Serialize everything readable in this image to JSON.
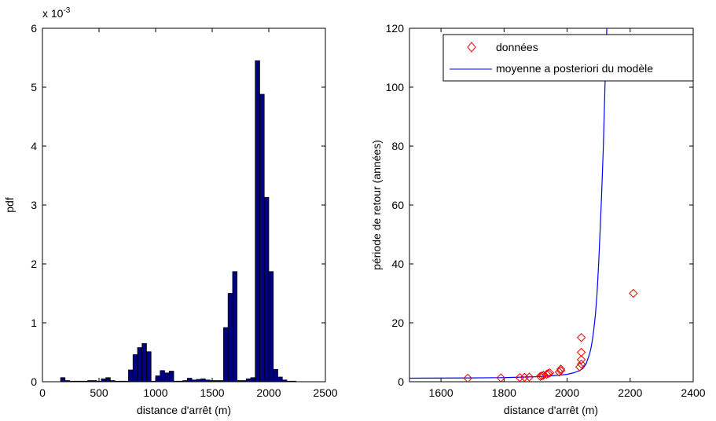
{
  "chart_data": [
    {
      "type": "bar",
      "xlabel": "distance d'arrêt (m)",
      "ylabel": "pdf",
      "exponent_label": "x 10",
      "exponent_power": "-3",
      "xlim": [
        0,
        2500
      ],
      "ylim": [
        0,
        6
      ],
      "xticks": [
        "0",
        "500",
        "1000",
        "1500",
        "2000",
        "2500"
      ],
      "yticks": [
        "0",
        "1",
        "2",
        "3",
        "4",
        "5",
        "6"
      ],
      "bin_width": 40,
      "bar_color": "#000080",
      "bins_x": [
        180,
        220,
        260,
        300,
        340,
        380,
        420,
        460,
        500,
        540,
        580,
        620,
        660,
        700,
        740,
        780,
        820,
        860,
        900,
        940,
        980,
        1020,
        1060,
        1100,
        1140,
        1180,
        1220,
        1260,
        1300,
        1340,
        1380,
        1420,
        1460,
        1500,
        1540,
        1580,
        1620,
        1660,
        1700,
        1740,
        1780,
        1820,
        1860,
        1900,
        1940,
        1980,
        2020,
        2060,
        2100,
        2140,
        2180,
        2220
      ],
      "values": [
        0.07,
        0.02,
        0.01,
        0.01,
        0.01,
        0.01,
        0.02,
        0.02,
        0.01,
        0.05,
        0.07,
        0.02,
        0.01,
        0.01,
        0.01,
        0.2,
        0.46,
        0.58,
        0.65,
        0.51,
        0.01,
        0.1,
        0.19,
        0.15,
        0.18,
        0.01,
        0.01,
        0.02,
        0.06,
        0.03,
        0.04,
        0.05,
        0.03,
        0.02,
        0.02,
        0.02,
        0.92,
        1.5,
        1.87,
        0.02,
        0.02,
        0.05,
        0.07,
        5.45,
        4.88,
        3.13,
        1.87,
        0.21,
        0.08,
        0.03,
        0.01,
        0.01
      ]
    },
    {
      "type": "scatter+line",
      "xlabel": "distance d'arrêt (m)",
      "ylabel": "période de retour (années)",
      "xlim": [
        1500,
        2400
      ],
      "ylim": [
        0,
        120
      ],
      "xticks": [
        "1600",
        "1800",
        "2000",
        "2200",
        "2400"
      ],
      "yticks": [
        "0",
        "20",
        "40",
        "60",
        "80",
        "100",
        "120"
      ],
      "legend_placement": "top-right",
      "series": [
        {
          "name": "données",
          "marker": "diamond",
          "color": "#ff0000",
          "points": [
            [
              1685,
              1.2
            ],
            [
              1790,
              1.3
            ],
            [
              1850,
              1.4
            ],
            [
              1865,
              1.5
            ],
            [
              1880,
              1.6
            ],
            [
              1915,
              1.8
            ],
            [
              1920,
              2.0
            ],
            [
              1925,
              2.2
            ],
            [
              1935,
              2.5
            ],
            [
              1940,
              2.8
            ],
            [
              1945,
              3.0
            ],
            [
              1975,
              3.3
            ],
            [
              1980,
              3.8
            ],
            [
              1980,
              4.3
            ],
            [
              2040,
              5.0
            ],
            [
              2045,
              6.0
            ],
            [
              2045,
              7.5
            ],
            [
              2045,
              10.0
            ],
            [
              2045,
              15.0
            ],
            [
              2210,
              30.0
            ]
          ]
        },
        {
          "name": "moyenne a posteriori du modèle",
          "color": "#0000ff",
          "points": [
            [
              1500,
              1.2
            ],
            [
              1700,
              1.3
            ],
            [
              1800,
              1.4
            ],
            [
              1900,
              1.7
            ],
            [
              1950,
              2.0
            ],
            [
              2000,
              2.5
            ],
            [
              2020,
              3.0
            ],
            [
              2040,
              3.8
            ],
            [
              2050,
              4.5
            ],
            [
              2060,
              6.0
            ],
            [
              2065,
              7.5
            ],
            [
              2070,
              9.0
            ],
            [
              2075,
              11.0
            ],
            [
              2080,
              14.0
            ],
            [
              2085,
              18.0
            ],
            [
              2090,
              23.0
            ],
            [
              2095,
              30.0
            ],
            [
              2100,
              40.0
            ],
            [
              2105,
              52.0
            ],
            [
              2110,
              65.0
            ],
            [
              2115,
              80.0
            ],
            [
              2118,
              92.0
            ],
            [
              2120,
              100.0
            ],
            [
              2123,
              110.0
            ],
            [
              2126,
              120.0
            ]
          ]
        }
      ]
    }
  ]
}
